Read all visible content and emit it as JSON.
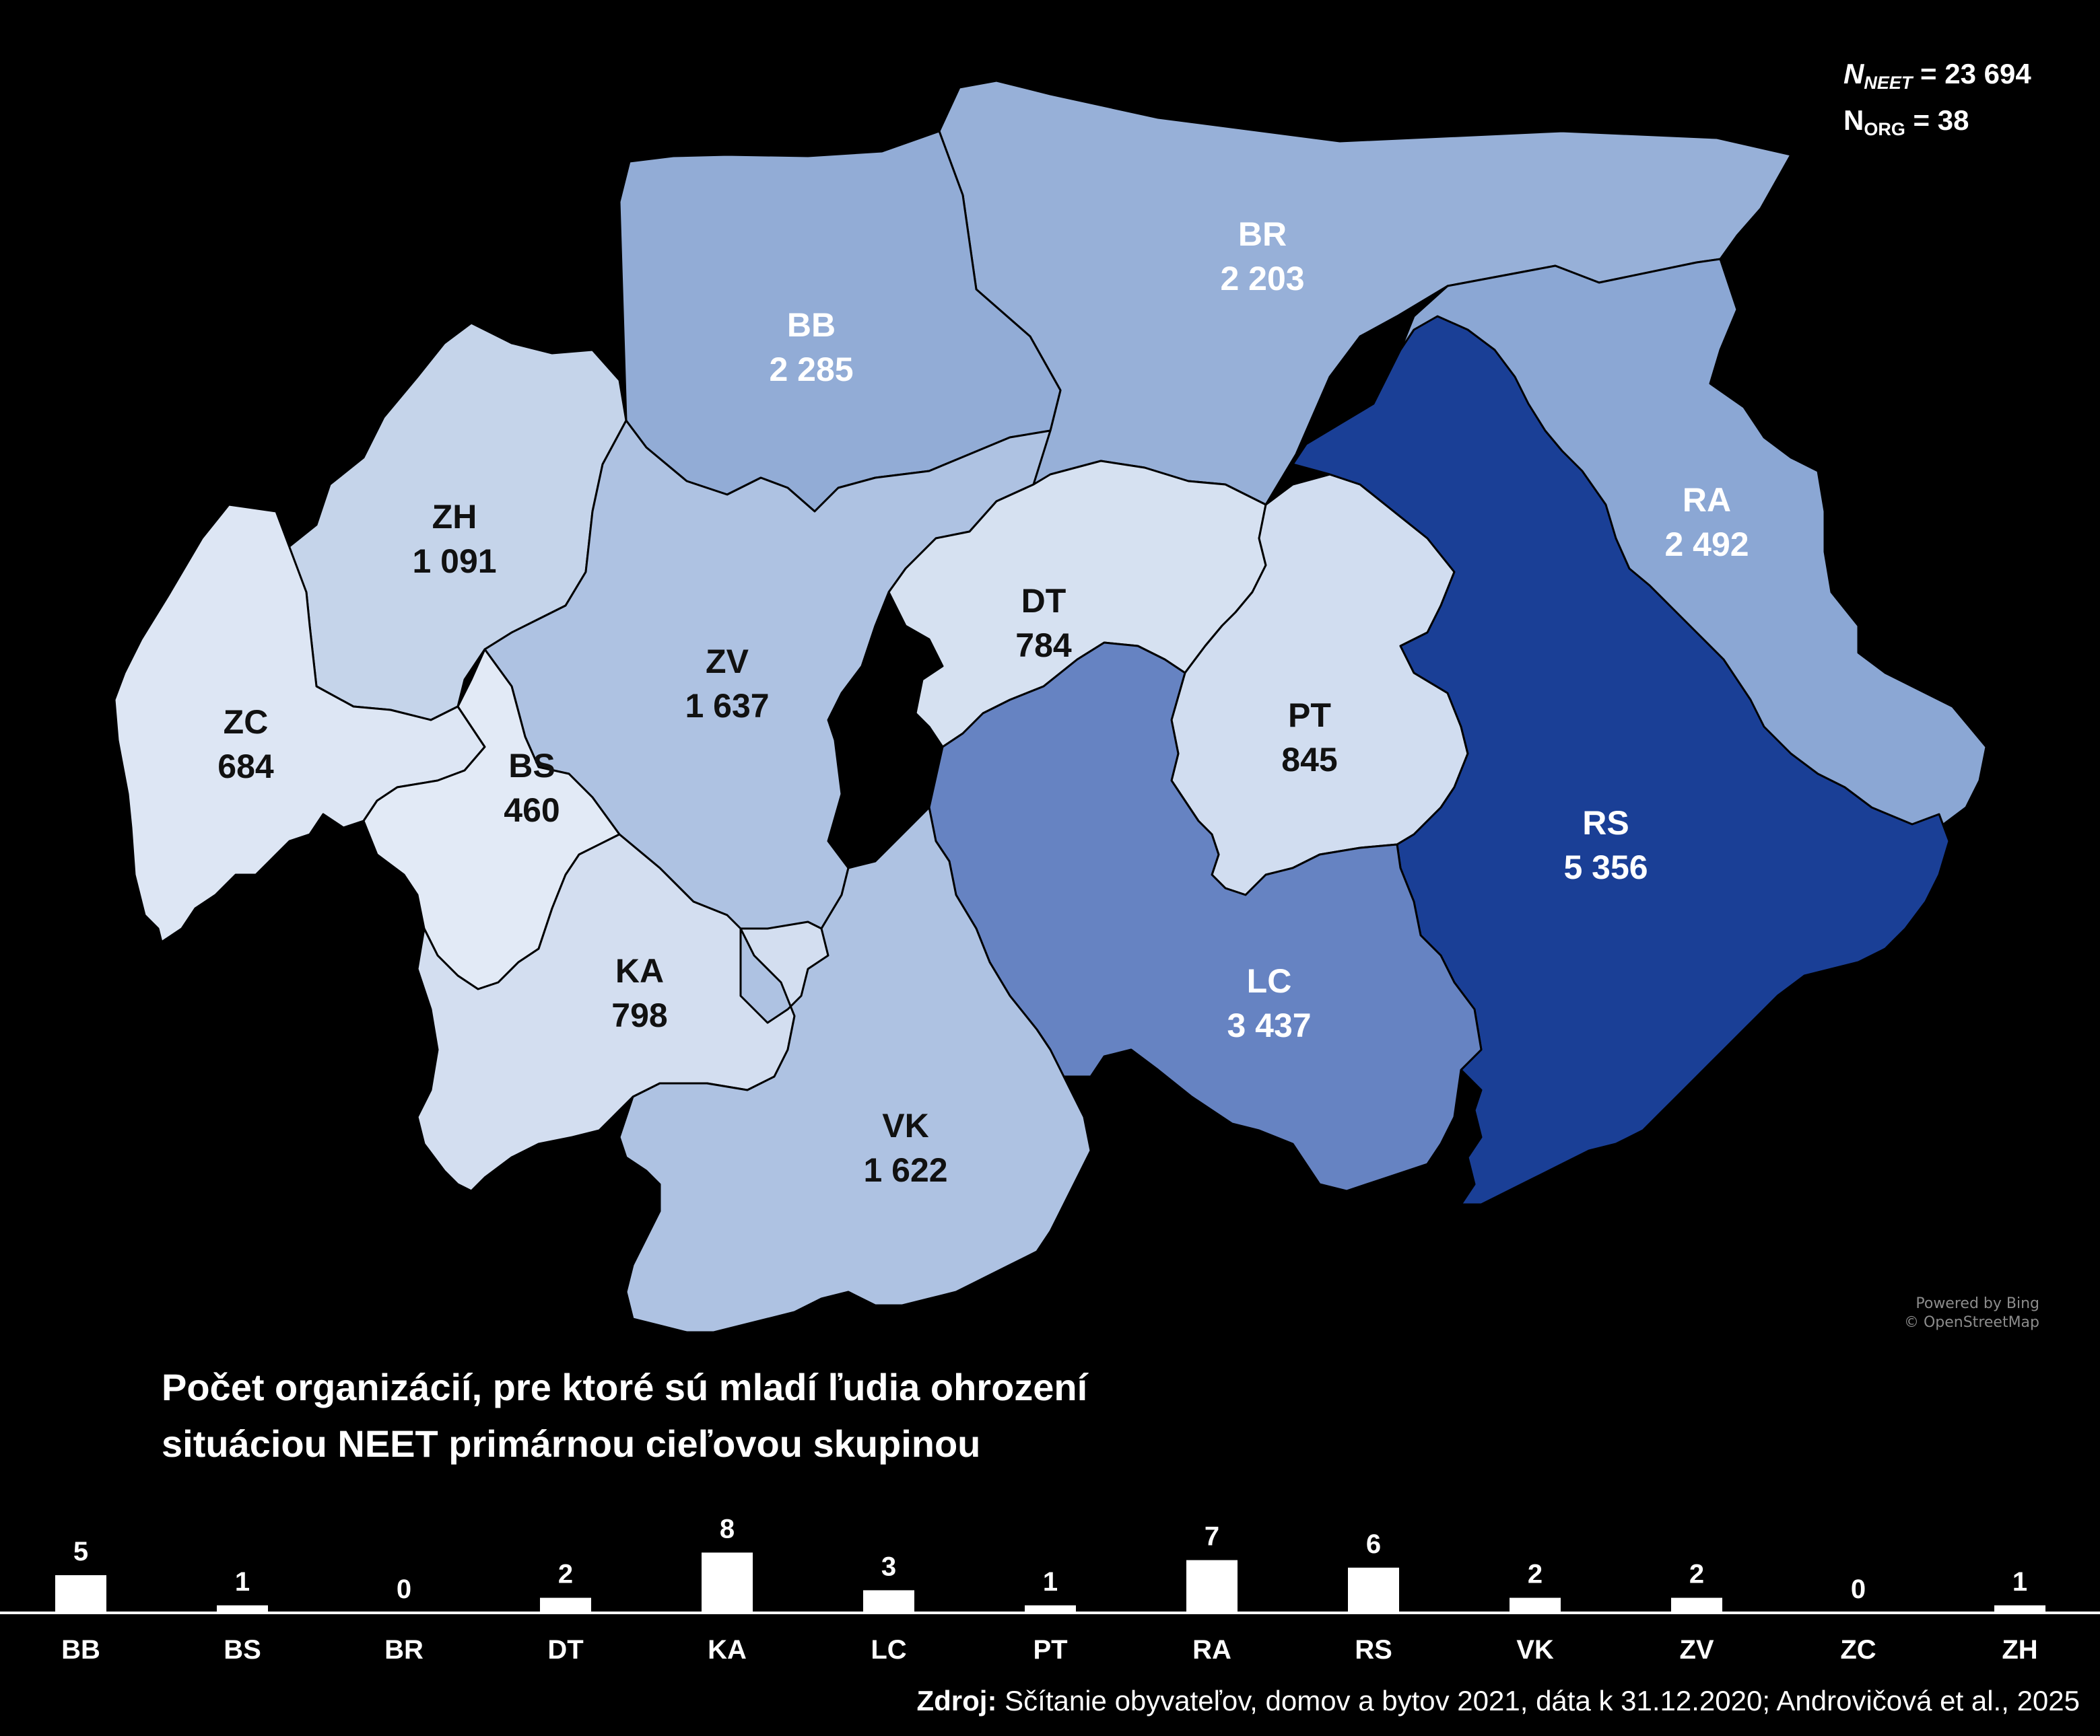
{
  "legend_box": {
    "n_neet_label": "N",
    "n_neet_sub": "NEET",
    "n_neet_value": "= 23 694",
    "n_org_label": "N",
    "n_org_sub": "ORG",
    "n_org_value": "= 38"
  },
  "map": {
    "districts": [
      {
        "code": "BR",
        "value": "2 203",
        "color": "#97b0d8",
        "text_color": "#ffffff"
      },
      {
        "code": "BB",
        "value": "2 285",
        "color": "#92acd6",
        "text_color": "#ffffff"
      },
      {
        "code": "ZH",
        "value": "1 091",
        "color": "#c5d4ea",
        "text_color": "#111111"
      },
      {
        "code": "ZV",
        "value": "1 637",
        "color": "#aec2e2",
        "text_color": "#111111"
      },
      {
        "code": "DT",
        "value": "784",
        "color": "#d6e1f1",
        "text_color": "#111111"
      },
      {
        "code": "RA",
        "value": "2 492",
        "color": "#8ba7d4",
        "text_color": "#ffffff"
      },
      {
        "code": "ZC",
        "value": "684",
        "color": "#dde6f4",
        "text_color": "#111111"
      },
      {
        "code": "BS",
        "value": "460",
        "color": "#e2eaf6",
        "text_color": "#111111"
      },
      {
        "code": "PT",
        "value": "845",
        "color": "#d1ddf0",
        "text_color": "#111111"
      },
      {
        "code": "RS",
        "value": "5 356",
        "color": "#1a3f96",
        "text_color": "#ffffff"
      },
      {
        "code": "KA",
        "value": "798",
        "color": "#d3def0",
        "text_color": "#111111"
      },
      {
        "code": "LC",
        "value": "3 437",
        "color": "#6683c2",
        "text_color": "#ffffff"
      },
      {
        "code": "VK",
        "value": "1 622",
        "color": "#aec2e2",
        "text_color": "#111111"
      }
    ],
    "credits": [
      "Powered by Bing",
      "© OpenStreetMap"
    ]
  },
  "title": [
    "Počet organizácií, pre ktoré sú mladí ľudia ohrození",
    "situáciou NEET primárnou cieľovou skupinou"
  ],
  "chart_data": {
    "type": "bar",
    "categories": [
      "BB",
      "BS",
      "BR",
      "DT",
      "KA",
      "LC",
      "PT",
      "RA",
      "RS",
      "VK",
      "ZV",
      "ZC",
      "ZH"
    ],
    "values": [
      5,
      1,
      0,
      2,
      8,
      3,
      1,
      7,
      6,
      2,
      2,
      0,
      1
    ],
    "bar_color": "#ffffff"
  },
  "source": {
    "label": "Zdroj:",
    "text": " Sčítanie obyvateľov, domov a bytov 2021, dáta k 31.12.2020; Androvičová et al., 2025"
  }
}
